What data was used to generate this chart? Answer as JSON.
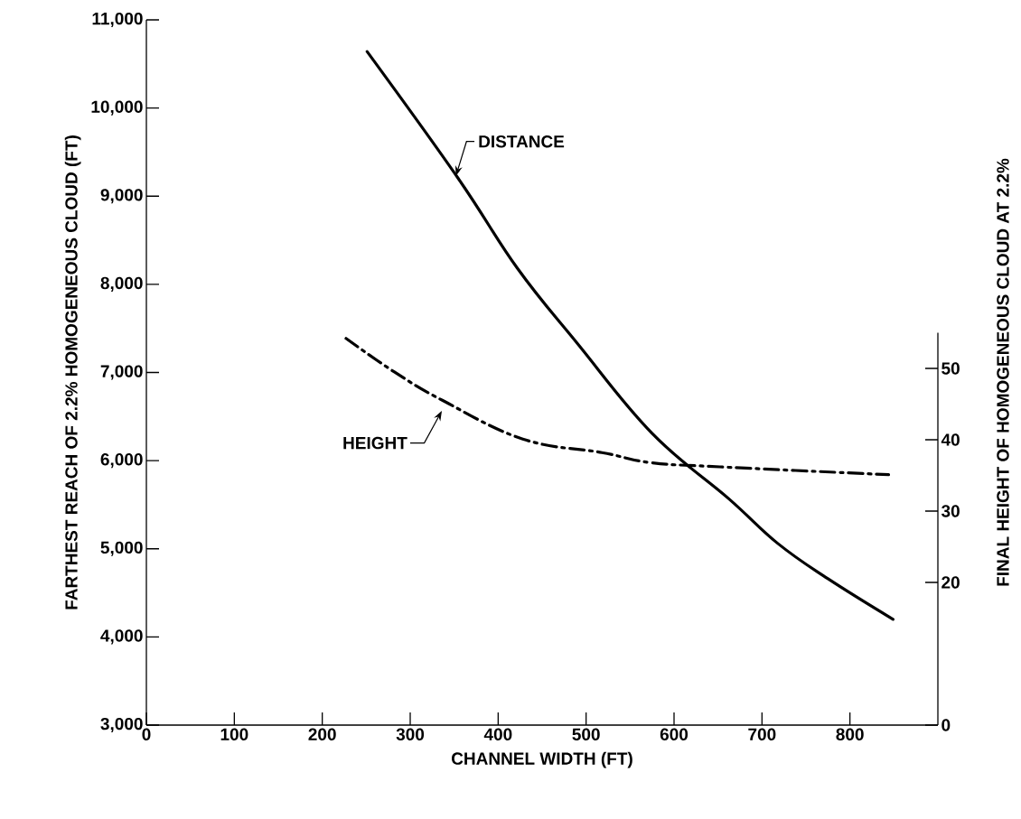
{
  "chart_data": {
    "type": "line",
    "xlabel": "CHANNEL WIDTH (FT)",
    "ylabel": "FARTHEST REACH OF 2.2% HOMOGENEOUS CLOUD (FT)",
    "y2label": "FINAL HEIGHT OF HOMOGENEOUS CLOUD AT 2.2%",
    "xlim": [
      0,
      900
    ],
    "xticks": [
      0,
      100,
      200,
      300,
      400,
      500,
      600,
      700,
      800
    ],
    "ylim": [
      3000,
      11000
    ],
    "yticks": [
      {
        "value": 3000,
        "label": "3,000"
      },
      {
        "value": 4000,
        "label": "4,000"
      },
      {
        "value": 5000,
        "label": "5,000"
      },
      {
        "value": 6000,
        "label": "6,000"
      },
      {
        "value": 7000,
        "label": "7,000"
      },
      {
        "value": 8000,
        "label": "8,000"
      },
      {
        "value": 9000,
        "label": "9,000"
      },
      {
        "value": 10000,
        "label": "10,000"
      },
      {
        "value": 11000,
        "label": "11,000"
      }
    ],
    "y2lim": [
      0,
      55
    ],
    "y2ticks": [
      0,
      20,
      30,
      40,
      50
    ],
    "series": [
      {
        "name": "DISTANCE",
        "color": "#000000",
        "line_style": "solid",
        "x": [
          251,
          354,
          422,
          490,
          575,
          662,
          718,
          775,
          849
        ],
        "values": [
          10640,
          9210,
          8180,
          7330,
          6310,
          5570,
          5060,
          4660,
          4200
        ]
      },
      {
        "name": "HEIGHT",
        "color": "#000000",
        "line_style": "dashdot",
        "axis": "y2",
        "x": [
          227,
          282,
          337,
          428,
          518,
          573,
          652,
          844
        ],
        "values": [
          54.2,
          49.5,
          45.5,
          40.1,
          38.2,
          36.8,
          36.2,
          35.1
        ]
      }
    ]
  }
}
